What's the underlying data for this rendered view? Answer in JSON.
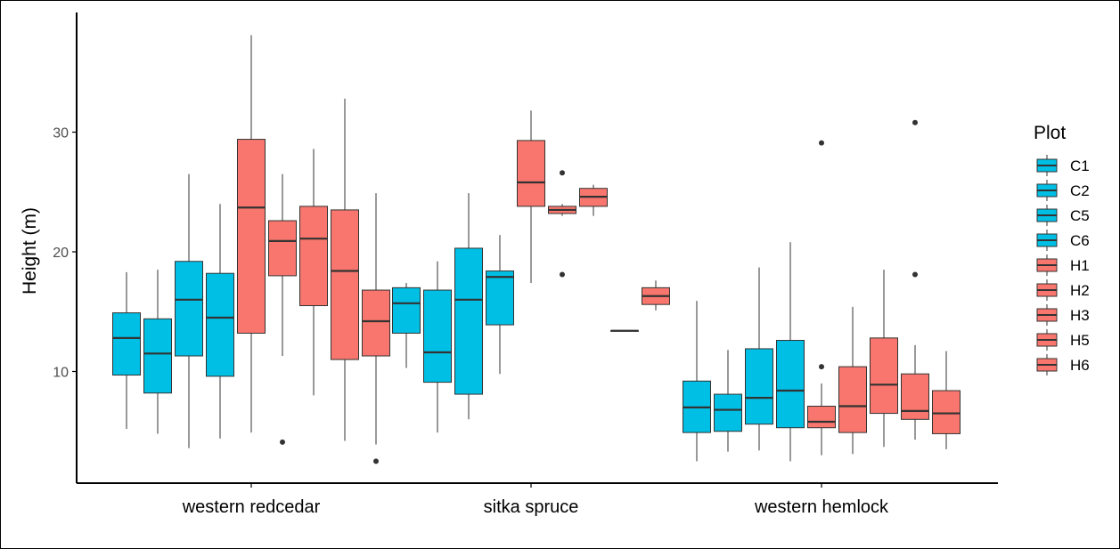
{
  "chart_data": {
    "type": "boxplot",
    "xlabel": "",
    "ylabel": "Height (m)",
    "ylim": [
      0,
      40
    ],
    "yticks": [
      10,
      20,
      30
    ],
    "grid": false,
    "legend": {
      "title": "Plot",
      "placement": "right"
    },
    "colors": {
      "C": "#00BFE4",
      "H": "#F8766D"
    },
    "categories": [
      "western redcedar",
      "sitka spruce",
      "western hemlock"
    ],
    "series": [
      {
        "name": "C1",
        "group": "C",
        "boxes": [
          {
            "category": "western redcedar",
            "min": 5.2,
            "q1": 9.7,
            "median": 12.8,
            "q3": 14.9,
            "max": 18.3,
            "outliers": []
          },
          {
            "category": "sitka spruce",
            "min": 10.3,
            "q1": 13.2,
            "median": 15.7,
            "q3": 17.0,
            "max": 17.4,
            "outliers": []
          },
          {
            "category": "western hemlock",
            "min": 2.5,
            "q1": 4.9,
            "median": 7.0,
            "q3": 9.2,
            "max": 15.9,
            "outliers": []
          }
        ]
      },
      {
        "name": "C2",
        "group": "C",
        "boxes": [
          {
            "category": "western redcedar",
            "min": 4.8,
            "q1": 8.2,
            "median": 11.5,
            "q3": 14.4,
            "max": 18.5,
            "outliers": []
          },
          {
            "category": "sitka spruce",
            "min": 4.9,
            "q1": 9.1,
            "median": 11.6,
            "q3": 16.8,
            "max": 19.2,
            "outliers": []
          },
          {
            "category": "western hemlock",
            "min": 3.3,
            "q1": 5.0,
            "median": 6.8,
            "q3": 8.1,
            "max": 11.8,
            "outliers": []
          }
        ]
      },
      {
        "name": "C5",
        "group": "C",
        "boxes": [
          {
            "category": "western redcedar",
            "min": 3.6,
            "q1": 11.3,
            "median": 16.0,
            "q3": 19.2,
            "max": 26.5,
            "outliers": []
          },
          {
            "category": "sitka spruce",
            "min": 6.0,
            "q1": 8.1,
            "median": 16.0,
            "q3": 20.3,
            "max": 24.9,
            "outliers": []
          },
          {
            "category": "western hemlock",
            "min": 3.4,
            "q1": 5.6,
            "median": 7.8,
            "q3": 11.9,
            "max": 18.7,
            "outliers": []
          }
        ]
      },
      {
        "name": "C6",
        "group": "C",
        "boxes": [
          {
            "category": "western redcedar",
            "min": 4.4,
            "q1": 9.6,
            "median": 14.5,
            "q3": 18.2,
            "max": 24.0,
            "outliers": []
          },
          {
            "category": "sitka spruce",
            "min": 9.8,
            "q1": 13.9,
            "median": 17.9,
            "q3": 18.4,
            "max": 21.4,
            "outliers": []
          },
          {
            "category": "western hemlock",
            "min": 2.5,
            "q1": 5.3,
            "median": 8.4,
            "q3": 12.6,
            "max": 20.8,
            "outliers": []
          }
        ]
      },
      {
        "name": "H1",
        "group": "H",
        "boxes": [
          {
            "category": "western redcedar",
            "min": 4.9,
            "q1": 13.2,
            "median": 23.7,
            "q3": 29.4,
            "max": 38.1,
            "outliers": []
          },
          {
            "category": "sitka spruce",
            "min": 17.4,
            "q1": 23.8,
            "median": 25.8,
            "q3": 29.3,
            "max": 31.8,
            "outliers": []
          },
          {
            "category": "western hemlock",
            "min": 3.0,
            "q1": 5.3,
            "median": 5.8,
            "q3": 7.1,
            "max": 9.0,
            "outliers": [
              10.4,
              29.1
            ]
          }
        ]
      },
      {
        "name": "H2",
        "group": "H",
        "boxes": [
          {
            "category": "western redcedar",
            "min": 11.3,
            "q1": 18.0,
            "median": 20.9,
            "q3": 22.6,
            "max": 26.5,
            "outliers": [
              4.1
            ]
          },
          {
            "category": "sitka spruce",
            "min": 23.0,
            "q1": 23.2,
            "median": 23.5,
            "q3": 23.8,
            "max": 24.0,
            "outliers": [
              26.6,
              18.1
            ]
          },
          {
            "category": "western hemlock",
            "min": 3.1,
            "q1": 4.9,
            "median": 7.1,
            "q3": 10.4,
            "max": 15.4,
            "outliers": []
          }
        ]
      },
      {
        "name": "H3",
        "group": "H",
        "boxes": [
          {
            "category": "western redcedar",
            "min": 8.0,
            "q1": 15.5,
            "median": 21.1,
            "q3": 23.8,
            "max": 28.6,
            "outliers": []
          },
          {
            "category": "sitka spruce",
            "min": 23.0,
            "q1": 23.8,
            "median": 24.6,
            "q3": 25.3,
            "max": 25.6,
            "outliers": []
          },
          {
            "category": "western hemlock",
            "min": 3.7,
            "q1": 6.5,
            "median": 8.9,
            "q3": 12.8,
            "max": 18.5,
            "outliers": []
          }
        ]
      },
      {
        "name": "H5",
        "group": "H",
        "boxes": [
          {
            "category": "western redcedar",
            "min": 4.2,
            "q1": 11.0,
            "median": 18.4,
            "q3": 23.5,
            "max": 32.8,
            "outliers": []
          },
          {
            "category": "sitka spruce",
            "min": 13.4,
            "q1": 13.4,
            "median": 13.4,
            "q3": 13.4,
            "max": 13.4,
            "outliers": []
          },
          {
            "category": "western hemlock",
            "min": 4.3,
            "q1": 6.0,
            "median": 6.7,
            "q3": 9.8,
            "max": 12.2,
            "outliers": [
              18.1,
              30.8
            ]
          }
        ]
      },
      {
        "name": "H6",
        "group": "H",
        "boxes": [
          {
            "category": "western redcedar",
            "min": 3.9,
            "q1": 11.3,
            "median": 14.2,
            "q3": 16.8,
            "max": 24.9,
            "outliers": [
              2.5
            ]
          },
          {
            "category": "sitka spruce",
            "min": 15.1,
            "q1": 15.6,
            "median": 16.3,
            "q3": 17.0,
            "max": 17.6,
            "outliers": []
          },
          {
            "category": "western hemlock",
            "min": 3.5,
            "q1": 4.8,
            "median": 6.5,
            "q3": 8.4,
            "max": 11.7,
            "outliers": []
          }
        ]
      }
    ]
  }
}
